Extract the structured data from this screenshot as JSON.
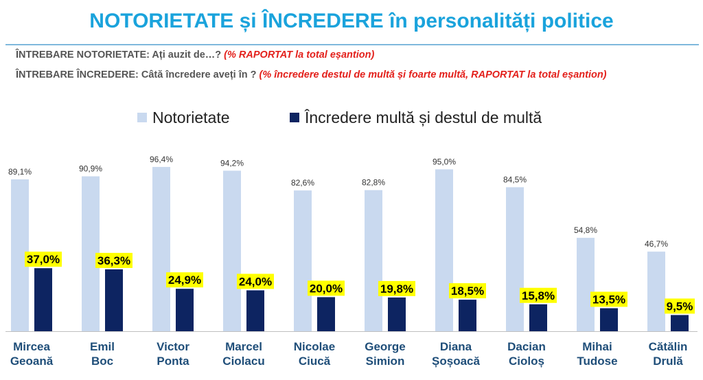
{
  "title": "NOTORIETATE și ÎNCREDERE în personalități politice",
  "questions": {
    "q1_label": "ÎNTREBARE NOTORIETATE: Ați auzit de…?",
    "q1_note": "(% RAPORTAT la total eșantion)",
    "q2_label": "ÎNTREBARE ÎNCREDERE: Câtă încredere aveți în ?",
    "q2_note": "(%  încredere destul de multă și foarte multă, RAPORTAT la total eșantion)"
  },
  "colors": {
    "notorietate": "#c9d9ef",
    "incredere": "#0d2461",
    "label_highlight": "#ffff00",
    "title": "#1aa3dc"
  },
  "chart_data": {
    "type": "bar",
    "categories": [
      [
        "Mircea",
        "Geoană"
      ],
      [
        "Emil",
        "Boc"
      ],
      [
        "Victor",
        "Ponta"
      ],
      [
        "Marcel",
        "Ciolacu"
      ],
      [
        "Nicolae",
        "Ciucă"
      ],
      [
        "George",
        "Simion"
      ],
      [
        "Diana",
        "Șoșoacă"
      ],
      [
        "Dacian",
        "Cioloș"
      ],
      [
        "Mihai",
        "Tudose"
      ],
      [
        "Cătălin",
        "Drulă"
      ]
    ],
    "series": [
      {
        "name": "Notorietate",
        "values": [
          89.1,
          90.9,
          96.4,
          94.2,
          82.6,
          82.8,
          95.0,
          84.5,
          54.8,
          46.7
        ],
        "labels": [
          "89,1%",
          "90,9%",
          "96,4%",
          "94,2%",
          "82,6%",
          "82,8%",
          "95,0%",
          "84,5%",
          "54,8%",
          "46,7%"
        ]
      },
      {
        "name": "Încredere multă și destul de multă",
        "values": [
          37.0,
          36.3,
          24.9,
          24.0,
          20.0,
          19.8,
          18.5,
          15.8,
          13.5,
          9.5
        ],
        "labels": [
          "37,0%",
          "36,3%",
          "24,9%",
          "24,0%",
          "20,0%",
          "19,8%",
          "18,5%",
          "15,8%",
          "13,5%",
          "9,5%"
        ]
      }
    ],
    "ylim": [
      0,
      100
    ],
    "grid": false,
    "legend_position": "top"
  }
}
